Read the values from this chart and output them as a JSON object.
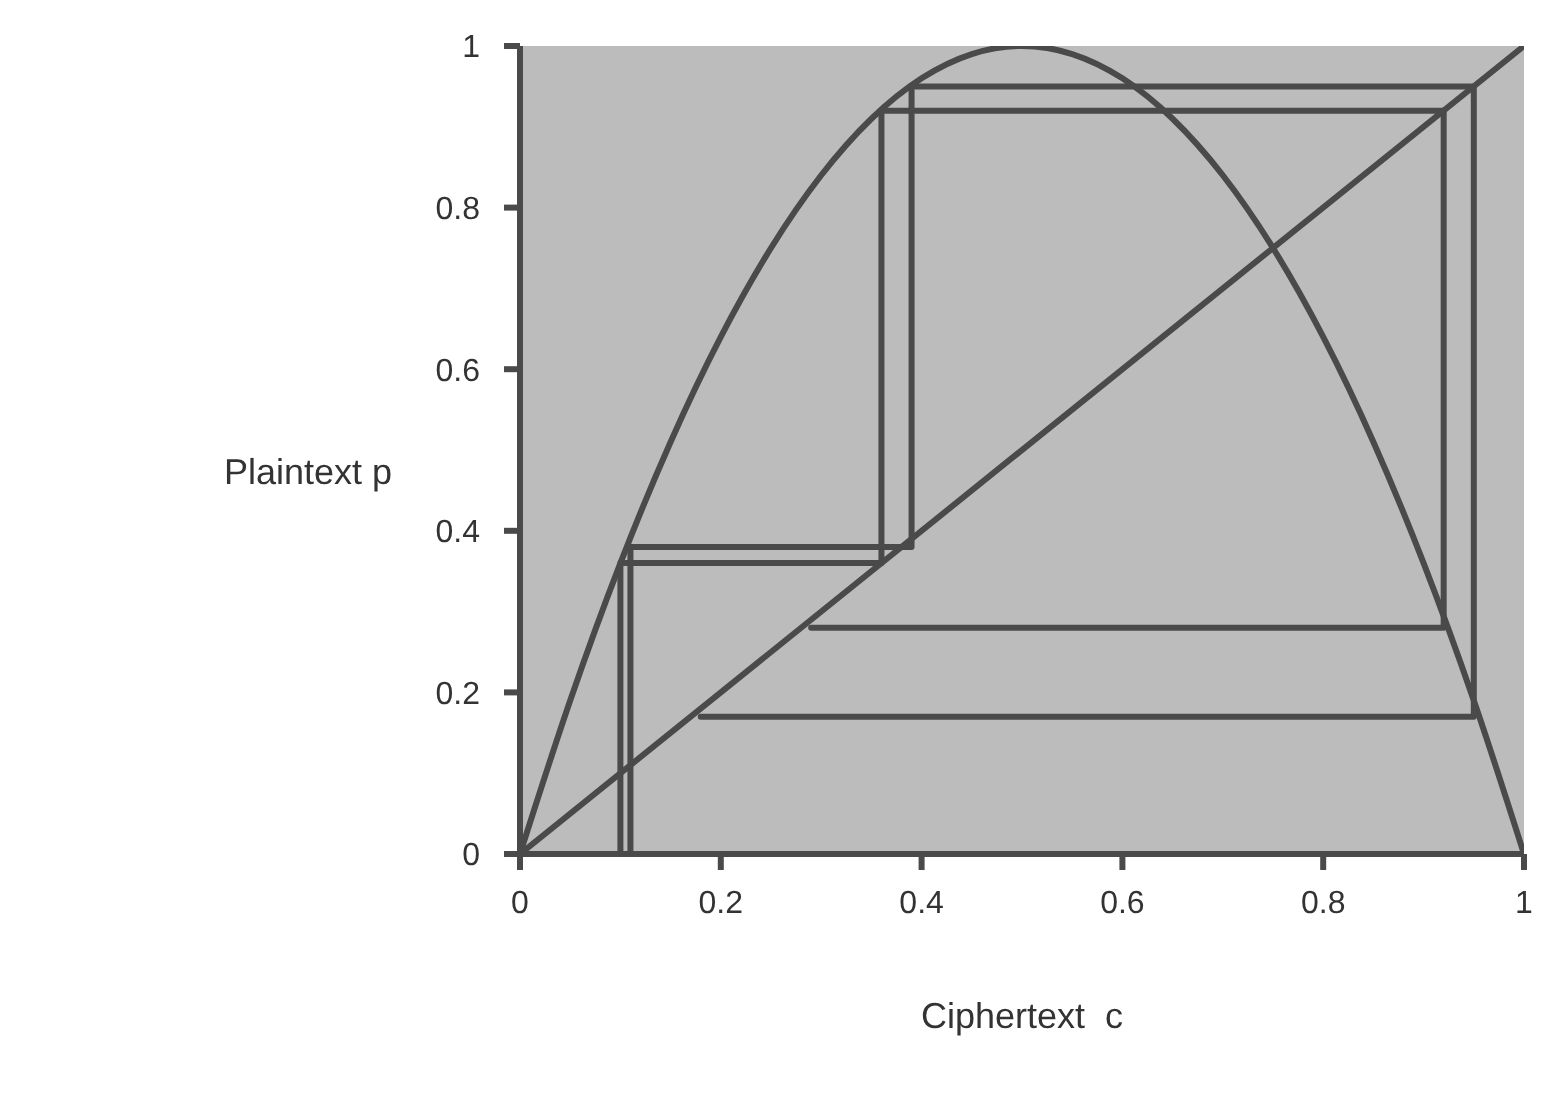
{
  "chart_data": {
    "type": "line",
    "xlabel": "Ciphertext  c",
    "ylabel": "Plaintext  p",
    "xlim": [
      0,
      1
    ],
    "ylim": [
      0,
      1
    ],
    "xticks": [
      0,
      0.2,
      0.4,
      0.6,
      0.8,
      1
    ],
    "yticks": [
      0,
      0.2,
      0.4,
      0.6,
      0.8,
      1
    ],
    "grid": false,
    "marker": "none",
    "line_style": "solid",
    "series": [
      {
        "color": "#4a4a4a",
        "x": [
          0,
          0.05,
          0.1,
          0.15,
          0.2,
          0.25,
          0.3,
          0.35,
          0.4,
          0.45,
          0.5,
          0.55,
          0.6,
          0.65,
          0.7,
          0.75,
          0.8,
          0.85,
          0.9,
          0.95,
          1
        ],
        "values": [
          0,
          0.19,
          0.36,
          0.51,
          0.64,
          0.75,
          0.84,
          0.91,
          0.96,
          0.99,
          1,
          0.99,
          0.96,
          0.91,
          0.84,
          0.75,
          0.64,
          0.51,
          0.36,
          0.19,
          0
        ]
      },
      {
        "color": "#4a4a4a",
        "x": [
          0,
          1
        ],
        "values": [
          0,
          1
        ]
      },
      {
        "color": "#4a4a4a",
        "x": [
          0.1,
          0.1,
          0.36,
          0.36,
          0.92,
          0.92,
          0.29
        ],
        "values": [
          0,
          0.36,
          0.36,
          0.92,
          0.92,
          0.28,
          0.28
        ]
      },
      {
        "color": "#4a4a4a",
        "x": [
          0.11,
          0.11,
          0.39,
          0.39,
          0.95,
          0.95,
          0.18
        ],
        "values": [
          0,
          0.38,
          0.38,
          0.95,
          0.95,
          0.17,
          0.17
        ]
      }
    ]
  }
}
